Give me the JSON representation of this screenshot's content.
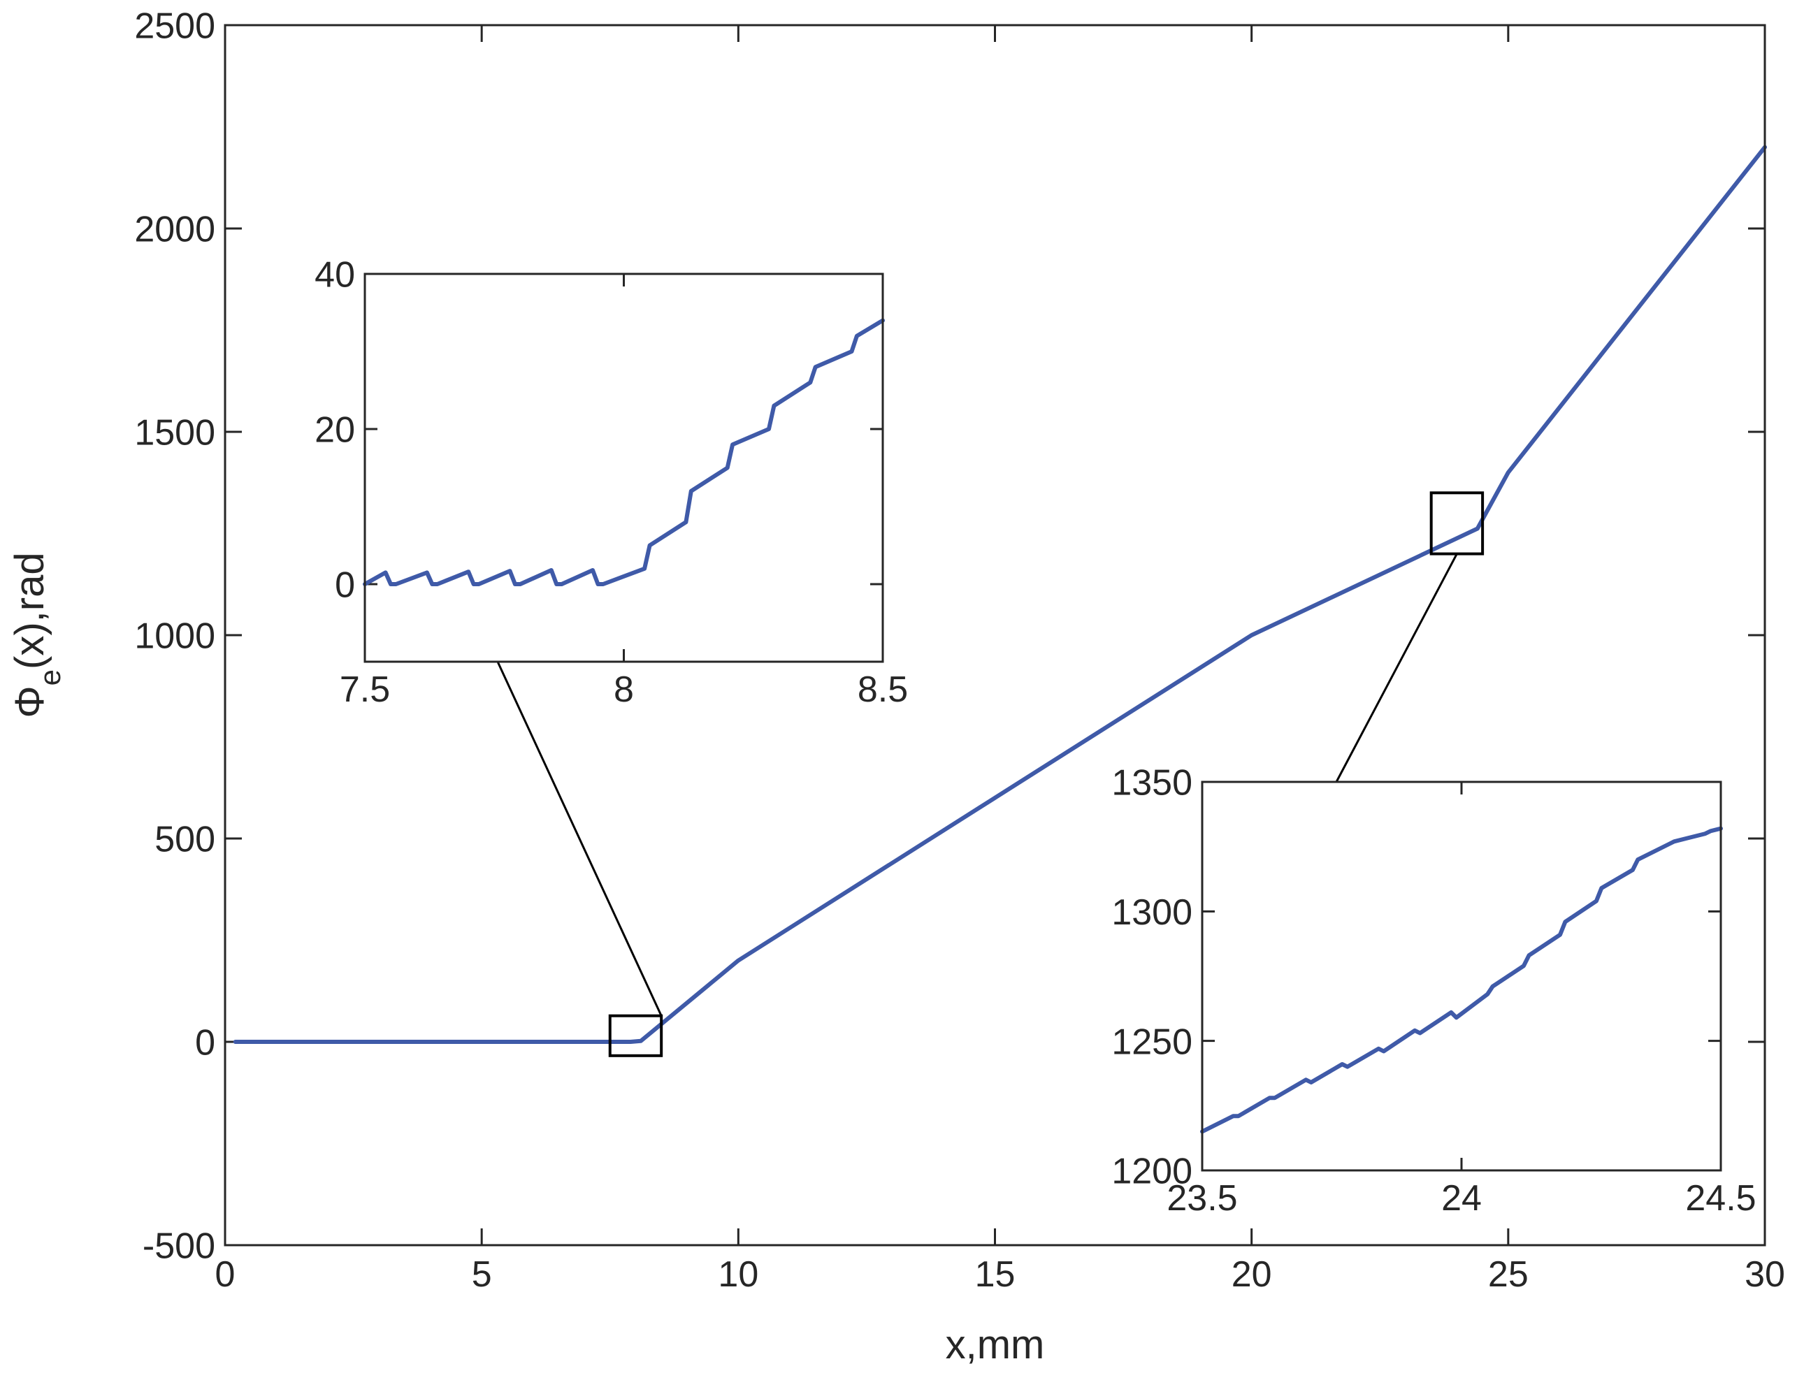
{
  "chart_data": [
    {
      "type": "line",
      "role": "main",
      "xlabel": "x,mm",
      "ylabel_main": "Φ",
      "ylabel_sub": "e",
      "ylabel_rest": "(x),rad",
      "xlim": [
        0,
        30
      ],
      "ylim": [
        -500,
        2500
      ],
      "xticks": [
        0,
        5,
        10,
        15,
        20,
        25,
        30
      ],
      "yticks": [
        -500,
        0,
        500,
        1000,
        1500,
        2000,
        2500
      ],
      "series_color": "#3f5aa8",
      "series": [
        {
          "x": [
            0.2,
            7.9,
            8.1,
            10,
            15,
            20,
            24.4,
            25,
            30
          ],
          "y": [
            0,
            0,
            2,
            200,
            600,
            1000,
            1262,
            1400,
            2200
          ]
        }
      ],
      "zoom_boxes": [
        {
          "xlim": [
            7.5,
            8.5
          ],
          "ylim": [
            -10,
            40
          ]
        },
        {
          "xlim": [
            23.5,
            24.5
          ],
          "ylim": [
            1200,
            1350
          ]
        }
      ]
    },
    {
      "type": "line",
      "role": "inset-1",
      "xlim": [
        7.5,
        8.5
      ],
      "ylim": [
        -10,
        40
      ],
      "xticks": [
        7.5,
        8,
        8.5
      ],
      "xtick_labels": [
        "7.5",
        "8",
        "8.5"
      ],
      "yticks": [
        0,
        20,
        40
      ],
      "series": [
        {
          "x": [
            7.5,
            7.54,
            7.55,
            7.56,
            7.62,
            7.63,
            7.64,
            7.7,
            7.71,
            7.72,
            7.78,
            7.79,
            7.8,
            7.86,
            7.87,
            7.88,
            7.94,
            7.95,
            7.96,
            8.04,
            8.05,
            8.12,
            8.13,
            8.2,
            8.21,
            8.28,
            8.29,
            8.36,
            8.37,
            8.44,
            8.45,
            8.5
          ],
          "y": [
            0,
            1.5,
            0,
            0,
            1.5,
            0,
            0,
            1.6,
            0,
            0,
            1.7,
            0,
            0,
            1.8,
            0,
            0,
            1.8,
            0,
            0,
            2,
            5,
            8,
            12,
            15,
            18,
            20,
            23,
            26,
            28,
            30,
            32,
            34
          ]
        }
      ]
    },
    {
      "type": "line",
      "role": "inset-2",
      "xlim": [
        23.5,
        24.5
      ],
      "ylim": [
        1200,
        1350
      ],
      "xticks": [
        23.5,
        24,
        24.5
      ],
      "xtick_labels": [
        "23.5",
        "24",
        "24.5"
      ],
      "yticks": [
        1200,
        1250,
        1300,
        1350
      ],
      "series": [
        {
          "x": [
            23.5,
            23.56,
            23.57,
            23.63,
            23.64,
            23.7,
            23.71,
            23.77,
            23.78,
            23.84,
            23.85,
            23.91,
            23.92,
            23.98,
            23.99,
            24.05,
            24.06,
            24.12,
            24.13,
            24.19,
            24.2,
            24.26,
            24.27,
            24.33,
            24.34,
            24.4,
            24.41,
            24.47,
            24.48,
            24.5
          ],
          "y": [
            1215,
            1221,
            1221,
            1228,
            1228,
            1235,
            1234,
            1241,
            1240,
            1247,
            1246,
            1254,
            1253,
            1261,
            1259,
            1268,
            1271,
            1279,
            1283,
            1291,
            1296,
            1304,
            1309,
            1316,
            1320,
            1326,
            1327,
            1330,
            1331,
            1332
          ]
        }
      ]
    }
  ]
}
